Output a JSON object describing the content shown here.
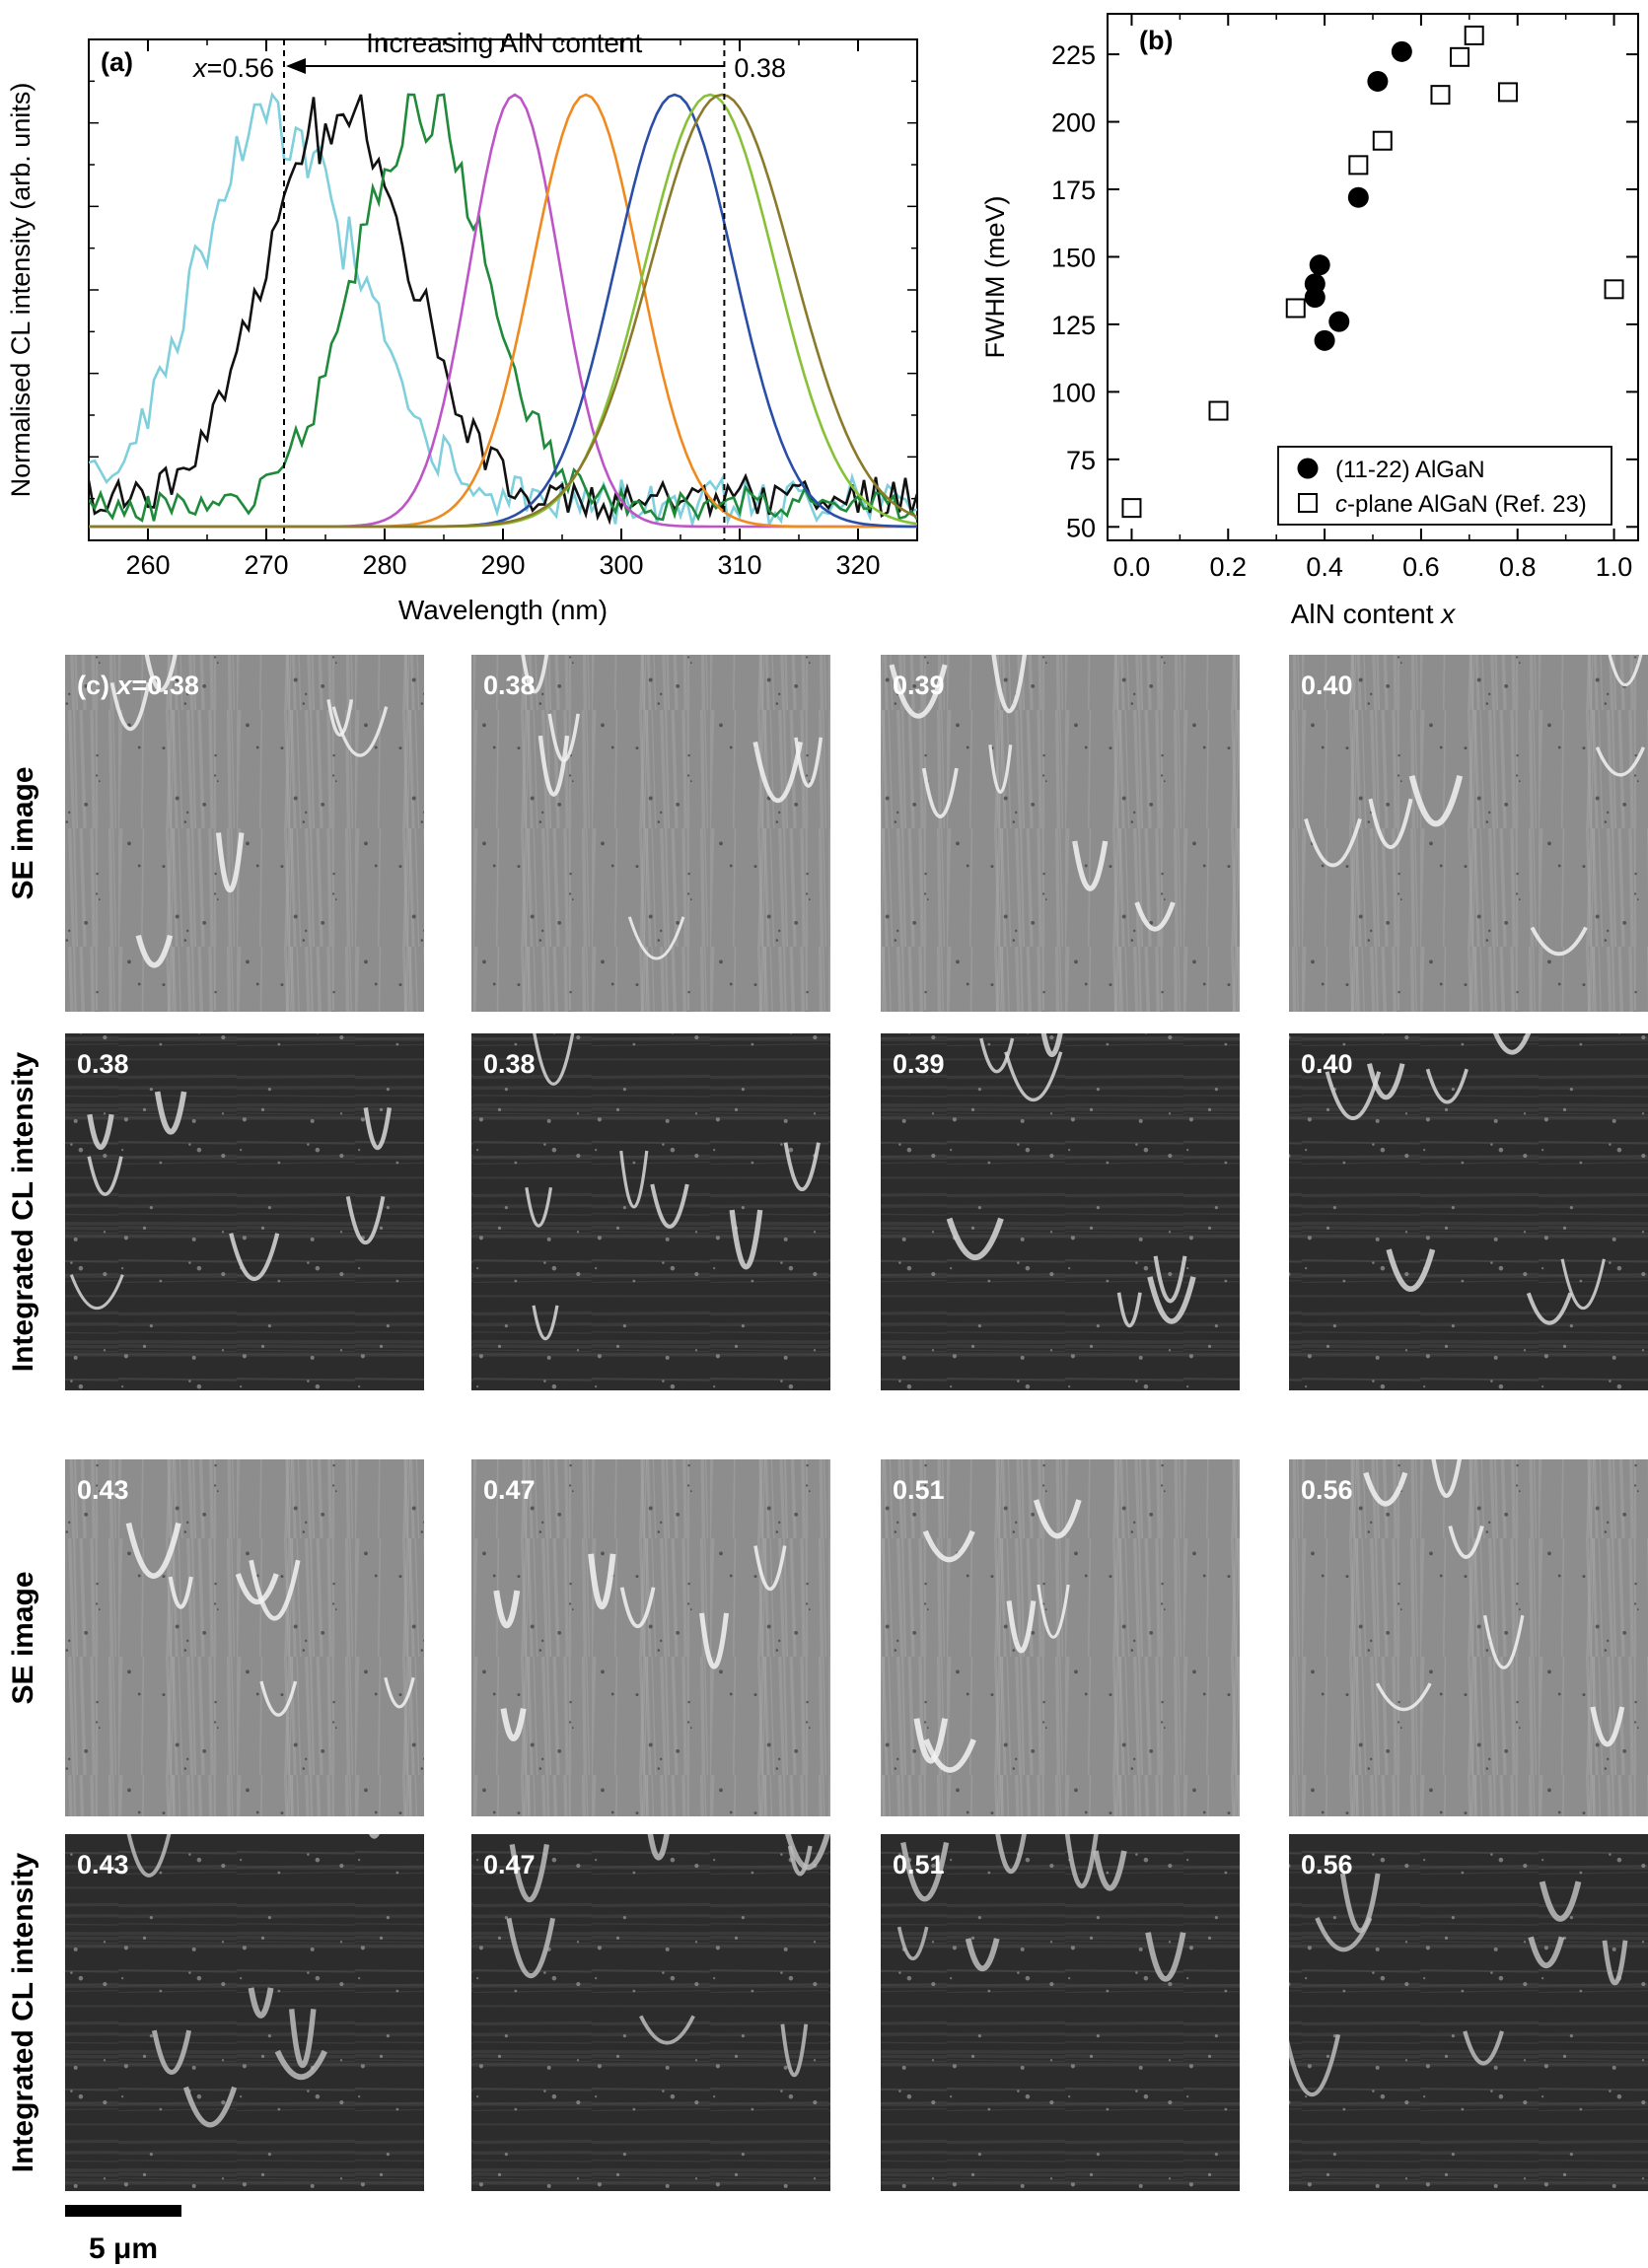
{
  "chart_data": [
    {
      "panel": "(a)",
      "type": "line",
      "xlabel": "Wavelength (nm)",
      "ylabel": "Normalised CL intensity (arb. units)",
      "xlim": [
        255,
        325
      ],
      "xticks": [
        260,
        270,
        280,
        290,
        300,
        310,
        320
      ],
      "annotation": {
        "text": "Increasing AlN content",
        "left_marker": "x=0.56",
        "right_marker": "0.38",
        "left_line_x": 271.5,
        "right_line_x": 308.7
      },
      "series": [
        {
          "color": "#7fd0dc",
          "peak_nm": 271,
          "width_nm": 6.5,
          "noise": 0.12
        },
        {
          "color": "#111111",
          "peak_nm": 276,
          "width_nm": 6.0,
          "noise": 0.12
        },
        {
          "color": "#1e8a3a",
          "peak_nm": 283,
          "width_nm": 5.5,
          "noise": 0.08
        },
        {
          "color": "#bd55c8",
          "peak_nm": 291,
          "width_nm": 3.8,
          "noise": 0.01
        },
        {
          "color": "#f08a1e",
          "peak_nm": 297,
          "width_nm": 4.5,
          "noise": 0.01
        },
        {
          "color": "#2a4ea8",
          "peak_nm": 304.5,
          "width_nm": 5.0,
          "noise": 0.01
        },
        {
          "color": "#86c236",
          "peak_nm": 307.5,
          "width_nm": 5.5,
          "noise": 0.01
        },
        {
          "color": "#8a7a2a",
          "peak_nm": 308.5,
          "width_nm": 6.0,
          "noise": 0.01
        }
      ]
    },
    {
      "panel": "(b)",
      "type": "scatter",
      "xlabel": "AlN content",
      "xlabel_var": "x",
      "ylabel": "FWHM (meV)",
      "xlim": [
        -0.05,
        1.05
      ],
      "ylim": [
        45,
        240
      ],
      "xticks": [
        0.0,
        0.2,
        0.4,
        0.6,
        0.8,
        1.0
      ],
      "yticks": [
        50,
        75,
        100,
        125,
        150,
        175,
        200,
        225
      ],
      "legend_position": "bottom-right",
      "series": [
        {
          "name": "(11-22) AlGaN",
          "marker": "filled-circle",
          "x": [
            0.38,
            0.38,
            0.39,
            0.4,
            0.43,
            0.47,
            0.51,
            0.56
          ],
          "y": [
            135,
            140,
            147,
            119,
            126,
            172,
            215,
            226
          ]
        },
        {
          "name_prefix": "c",
          "name": "-plane AlGaN (Ref. 23)",
          "marker": "open-square",
          "x": [
            0.0,
            0.18,
            0.34,
            0.47,
            0.52,
            0.64,
            0.68,
            0.71,
            0.78,
            1.0
          ],
          "y": [
            57,
            93,
            131,
            184,
            193,
            210,
            224,
            232,
            211,
            138
          ]
        }
      ]
    }
  ],
  "micrographs": {
    "panel_label": "(c)",
    "first_prefix": "x",
    "first_eq": "=",
    "row_labels": [
      "SE image",
      "Integrated CL intensity",
      "SE image",
      "Integrated CL intensity"
    ],
    "rows": [
      [
        "0.38",
        "0.38",
        "0.39",
        "0.40"
      ],
      [
        "0.38",
        "0.38",
        "0.39",
        "0.40"
      ],
      [
        "0.43",
        "0.47",
        "0.51",
        "0.56"
      ],
      [
        "0.43",
        "0.47",
        "0.51",
        "0.56"
      ]
    ],
    "scale_bar": "5 μm"
  }
}
